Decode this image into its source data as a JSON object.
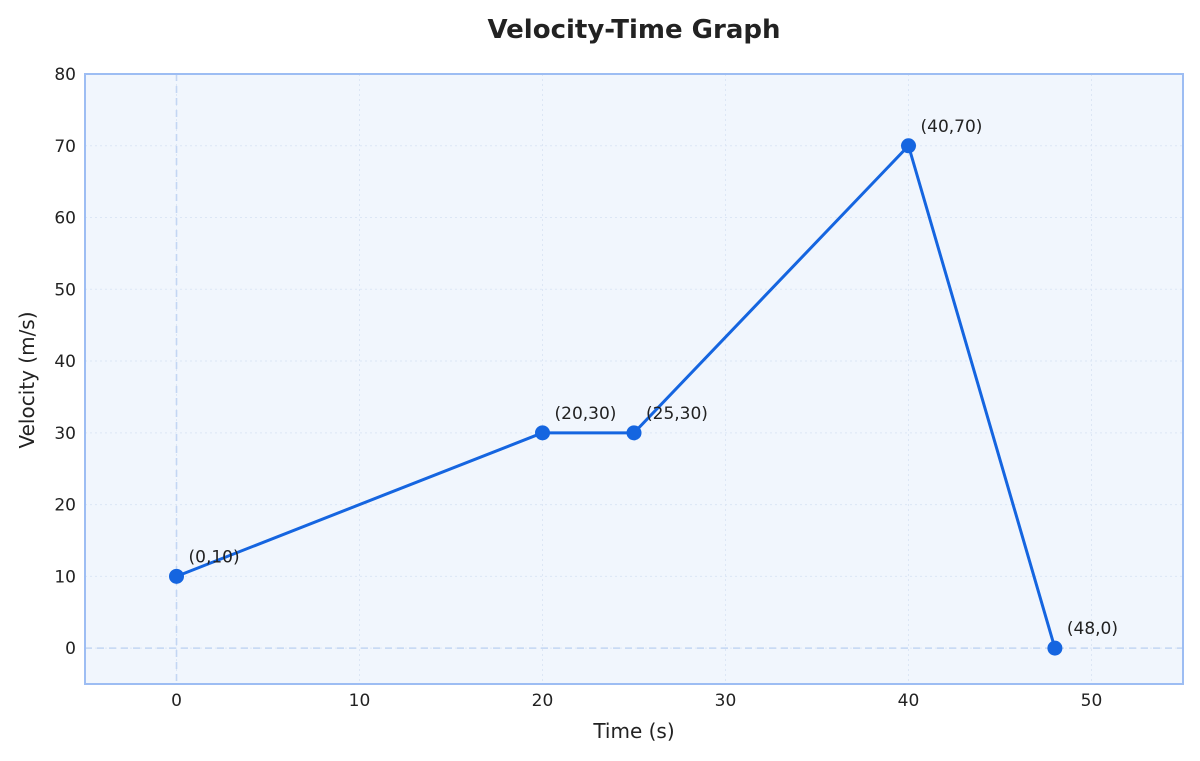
{
  "chart_data": {
    "type": "line",
    "title": "Velocity-Time Graph",
    "xlabel": "Time (s)",
    "ylabel": "Velocity (m/s)",
    "xlim": [
      -5,
      55
    ],
    "ylim": [
      -5,
      80
    ],
    "xticks": [
      0,
      10,
      20,
      30,
      40,
      50
    ],
    "yticks": [
      0,
      10,
      20,
      30,
      40,
      50,
      60,
      70,
      80
    ],
    "grid": true,
    "series": [
      {
        "x": [
          0,
          20,
          25,
          40,
          48
        ],
        "y": [
          10,
          30,
          30,
          70,
          0
        ],
        "labels": [
          "(0,10)",
          "(20,30)",
          "(25,30)",
          "(40,70)",
          "(48,0)"
        ]
      }
    ]
  },
  "colors": {
    "line": "#1565E0",
    "plot_bg": "#F1F6FD",
    "frame": "#9DBDF3",
    "grid": "#DCE6F5",
    "zero_lines": "#C3D6F3"
  }
}
